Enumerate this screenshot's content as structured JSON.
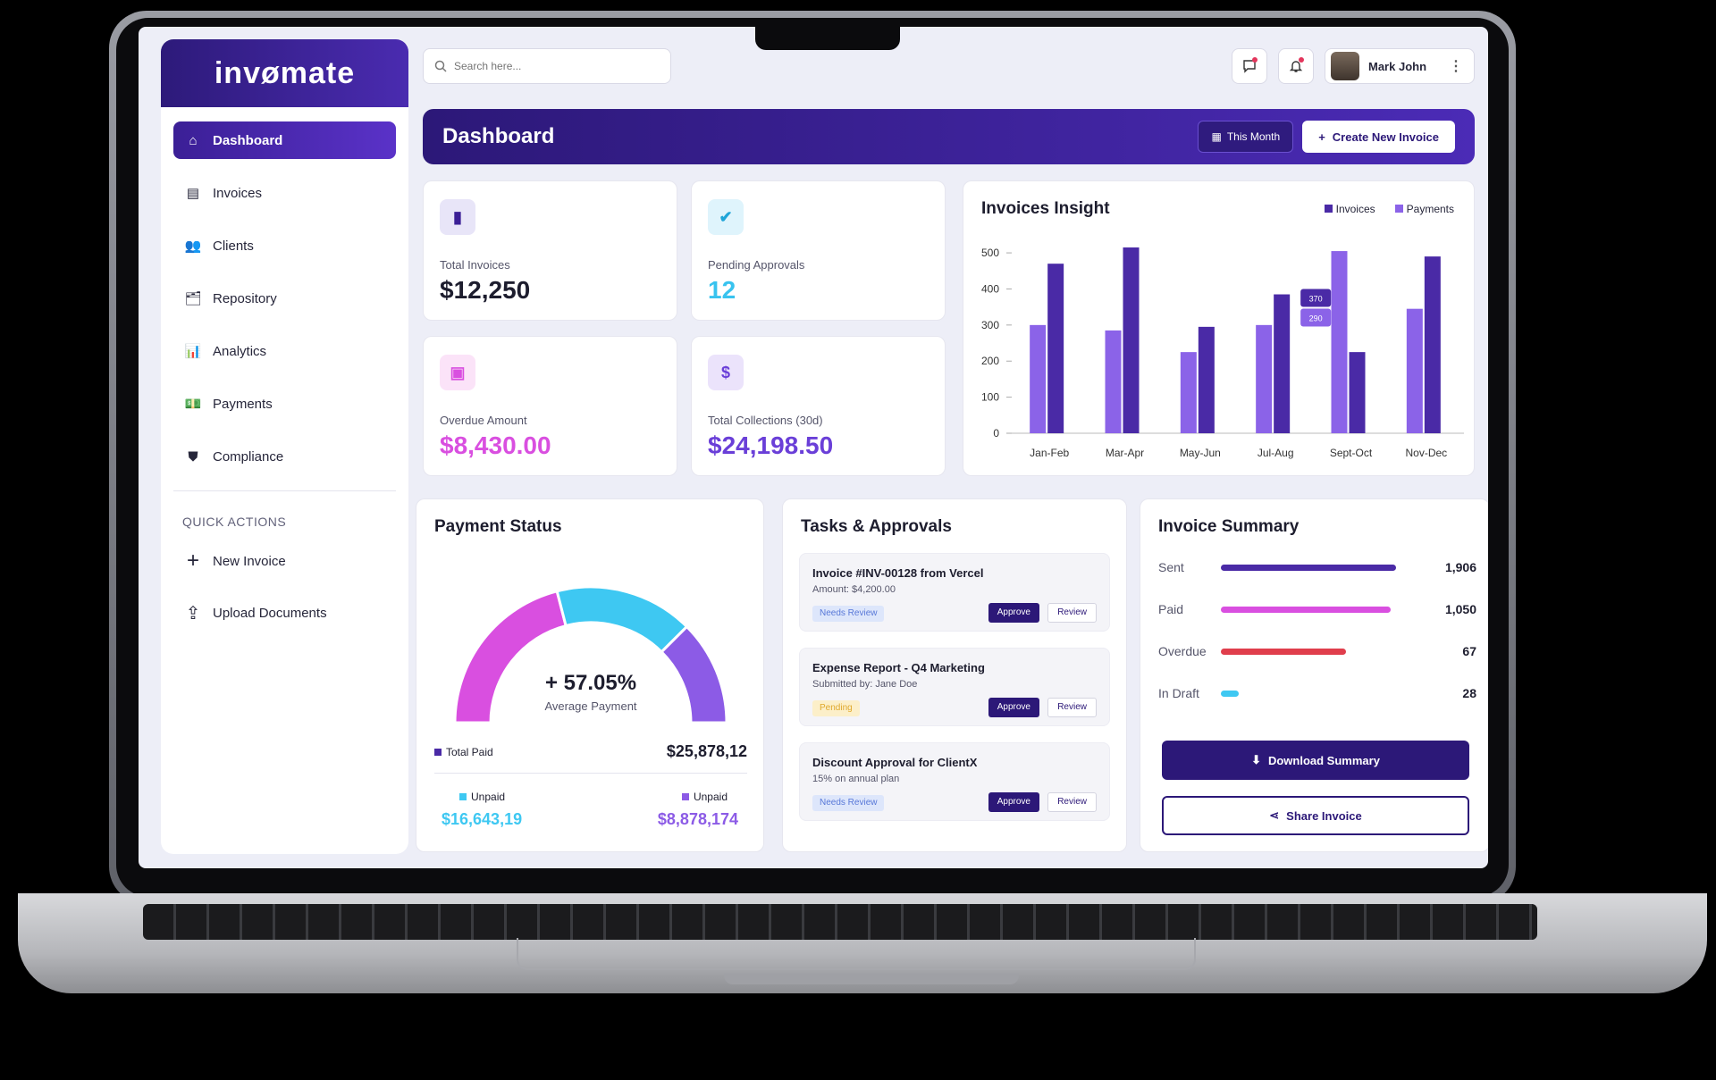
{
  "brand": {
    "logo_text": "invømate"
  },
  "sidebar": {
    "items": [
      {
        "label": "Dashboard",
        "icon": "home-icon",
        "glyph": "⌂"
      },
      {
        "label": "Invoices",
        "icon": "invoice-icon",
        "glyph": "▤"
      },
      {
        "label": "Clients",
        "icon": "users-icon",
        "glyph": "👥"
      },
      {
        "label": "Repository",
        "icon": "folder-icon",
        "glyph": "🗂"
      },
      {
        "label": "Analytics",
        "icon": "analytics-icon",
        "glyph": "📊"
      },
      {
        "label": "Payments",
        "icon": "payments-icon",
        "glyph": "💵"
      },
      {
        "label": "Compliance",
        "icon": "shield-icon",
        "glyph": "⛊"
      }
    ],
    "quick_actions_title": "QUICK ACTIONS",
    "quick_actions": [
      {
        "label": "New Invoice",
        "glyph": "+"
      },
      {
        "label": "Upload Documents",
        "glyph": "⇪"
      }
    ]
  },
  "topbar": {
    "search_placeholder": "Search here...",
    "user_name": "Mark John"
  },
  "header": {
    "title": "Dashboard",
    "period_label": "This Month",
    "create_label": "Create New Invoice"
  },
  "stats": {
    "total_invoices": {
      "label": "Total Invoices",
      "value": "$12,250",
      "color": "#1d1d2e"
    },
    "pending_approvals": {
      "label": "Pending Approvals",
      "value": "12",
      "color": "#38c3ef"
    },
    "overdue_amount": {
      "label": "Overdue Amount",
      "value": "$8,430.00",
      "color": "#d94fe0"
    },
    "total_collections": {
      "label": "Total Collections (30d)",
      "value": "$24,198.50",
      "color": "#6a3fd8"
    }
  },
  "insight": {
    "title": "Invoices Insight",
    "legend_invoices": "Invoices",
    "legend_payments": "Payments"
  },
  "chart_data": {
    "type": "bar",
    "title": "Invoices Insight",
    "categories": [
      "Jan-Feb",
      "Mar-Apr",
      "May-Jun",
      "Jul-Aug",
      "Sept-Oct",
      "Nov-Dec"
    ],
    "series": [
      {
        "name": "Payments",
        "color": "#8b63e8",
        "values": [
          300,
          285,
          225,
          300,
          505,
          345
        ]
      },
      {
        "name": "Invoices",
        "color": "#4a2aa6",
        "values": [
          470,
          515,
          295,
          385,
          225,
          490
        ]
      }
    ],
    "yticks": [
      "0",
      "100",
      "200",
      "300",
      "400",
      "500"
    ],
    "ylim": [
      0,
      520
    ],
    "tooltip": {
      "top": "370",
      "bottom": "290"
    }
  },
  "payment_status": {
    "title": "Payment Status",
    "percent": "+ 57.05%",
    "percent_label": "Average Payment",
    "segments": [
      {
        "name": "Total Paid",
        "color": "#d94fe0",
        "share": 0.42
      },
      {
        "name": "Unpaid",
        "color": "#3ec8f2",
        "share": 0.33
      },
      {
        "name": "Unpaid",
        "color": "#8c5be6",
        "share": 0.25
      }
    ],
    "total_paid_label": "Total Paid",
    "total_paid_value": "$25,878,12",
    "unpaid1_label": "Unpaid",
    "unpaid1_value": "$16,643,19",
    "unpaid2_label": "Unpaid",
    "unpaid2_value": "$8,878,174"
  },
  "tasks": {
    "title": "Tasks & Approvals",
    "approve_label": "Approve",
    "review_label": "Review",
    "items": [
      {
        "title": "Invoice #INV-00128 from Vercel",
        "sub": "Amount: $4,200.00",
        "badge": "Needs Review"
      },
      {
        "title": "Expense Report - Q4 Marketing",
        "sub": "Submitted by: Jane Doe",
        "badge": "Pending"
      },
      {
        "title": "Discount Approval for ClientX",
        "sub": "15% on annual plan",
        "badge": "Needs Review"
      }
    ]
  },
  "summary": {
    "title": "Invoice Summary",
    "rows": [
      {
        "label": "Sent",
        "value": "1,906",
        "color": "#4a2aa6",
        "fraction": 0.98
      },
      {
        "label": "Paid",
        "value": "1,050",
        "color": "#d94fe0",
        "fraction": 0.95
      },
      {
        "label": "Overdue",
        "value": "67",
        "color": "#e03e4c",
        "fraction": 0.7
      },
      {
        "label": "In Draft",
        "value": "28",
        "color": "#3ec8f2",
        "fraction": 0.1
      }
    ],
    "download_label": "Download Summary",
    "share_label": "Share Invoice"
  }
}
